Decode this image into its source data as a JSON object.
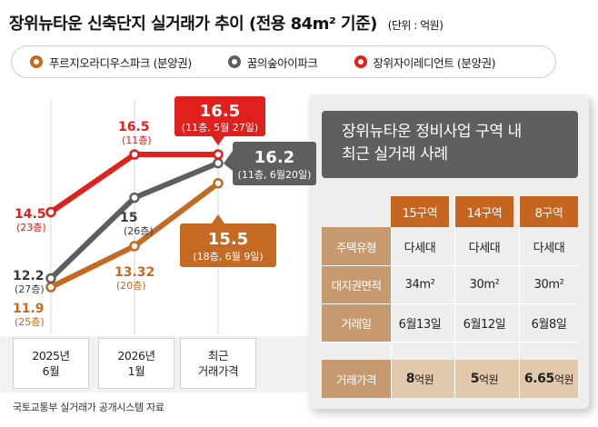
{
  "title": "장위뉴타운 신축단지 실거래가 추이",
  "title_paren": "(전용 84m² 기준)",
  "unit": "(단위 : 억원)",
  "colors": {
    "orange": "#c46a22",
    "gray": "#5e5e5e",
    "red": "#e0201c",
    "table_head": "#c5651f",
    "row_head": "#c7996f"
  },
  "chart_data": {
    "type": "line",
    "categories": [
      "2025년 6월",
      "2026년 1월",
      "최근 거래가격"
    ],
    "category_lines": [
      [
        "2025년",
        "6월"
      ],
      [
        "2026년",
        "1월"
      ],
      [
        "최근",
        "거래가격"
      ]
    ],
    "ylim": [
      11,
      17
    ],
    "series": [
      {
        "name": "푸르지오라디우스파크 (분양권)",
        "color": "#c46a22",
        "values": [
          11.9,
          13.32,
          15.5
        ],
        "labels": [
          "11.9",
          "13.32",
          "15.5"
        ],
        "sublabels": [
          "(25층)",
          "(20층)",
          "(18층, 6월 9일)"
        ]
      },
      {
        "name": "꿈의숲아이파크",
        "color": "#5e5e5e",
        "values": [
          12.2,
          15,
          16.2
        ],
        "labels": [
          "12.2",
          "15",
          "16.2"
        ],
        "sublabels": [
          "(27층)",
          "(26층)",
          "(11층, 6월20일)"
        ]
      },
      {
        "name": "장위자이레디언트 (분양권)",
        "color": "#e0201c",
        "values": [
          14.5,
          16.5,
          16.5
        ],
        "labels": [
          "14.5",
          "16.5",
          "16.5"
        ],
        "sublabels": [
          "(23층)",
          "(11층)",
          "(11층, 5월 27일)"
        ]
      }
    ]
  },
  "panel": {
    "title_line1": "장위뉴타운 정비사업 구역 내",
    "title_line2": "최근 실거래 사례",
    "columns": [
      "15구역",
      "14구역",
      "8구역"
    ],
    "rows": [
      {
        "label": "주택유형",
        "values": [
          "다세대",
          "다세대",
          "다세대"
        ]
      },
      {
        "label": "대지권면적",
        "values": [
          "34m²",
          "30m²",
          "30m²"
        ]
      },
      {
        "label": "거래일",
        "values": [
          "6월13일",
          "6월12일",
          "6월8일"
        ]
      },
      {
        "label": "거래가격",
        "values": [
          "8",
          "5",
          "6.65"
        ],
        "suffix": "억원"
      }
    ]
  },
  "source": "국토교통부 실거래가 공개시스템 자료"
}
